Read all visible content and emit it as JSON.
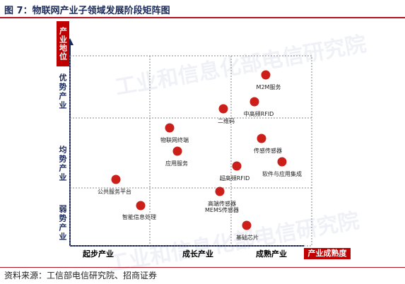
{
  "figure_title": "图 7：物联网产业子领域发展阶段矩阵图",
  "y_axis_badge": "产业地位",
  "x_axis_badge": "产业成熟度",
  "y_levels": [
    "优势产业",
    "均势产业",
    "弱势产业"
  ],
  "x_levels": [
    "起步产业",
    "成长产业",
    "成熟产业"
  ],
  "points": [
    {
      "label": "M2M服务"
    },
    {
      "label": "中高频RFID"
    },
    {
      "label": "二维码"
    },
    {
      "label": "物联网终端"
    },
    {
      "label": "应用服务"
    },
    {
      "label": "传感传感器"
    },
    {
      "label": "软件与应用集成"
    },
    {
      "label": "超高频RFID"
    },
    {
      "label": "公共服务平台"
    },
    {
      "label": "智能信息处理"
    },
    {
      "label": "高端传感器\nMEMS传感器"
    },
    {
      "label": "基础芯片"
    }
  ],
  "watermark": "工业和信息化部电信研究院",
  "source": "资料来源：工信部电信研究院、招商证券"
}
